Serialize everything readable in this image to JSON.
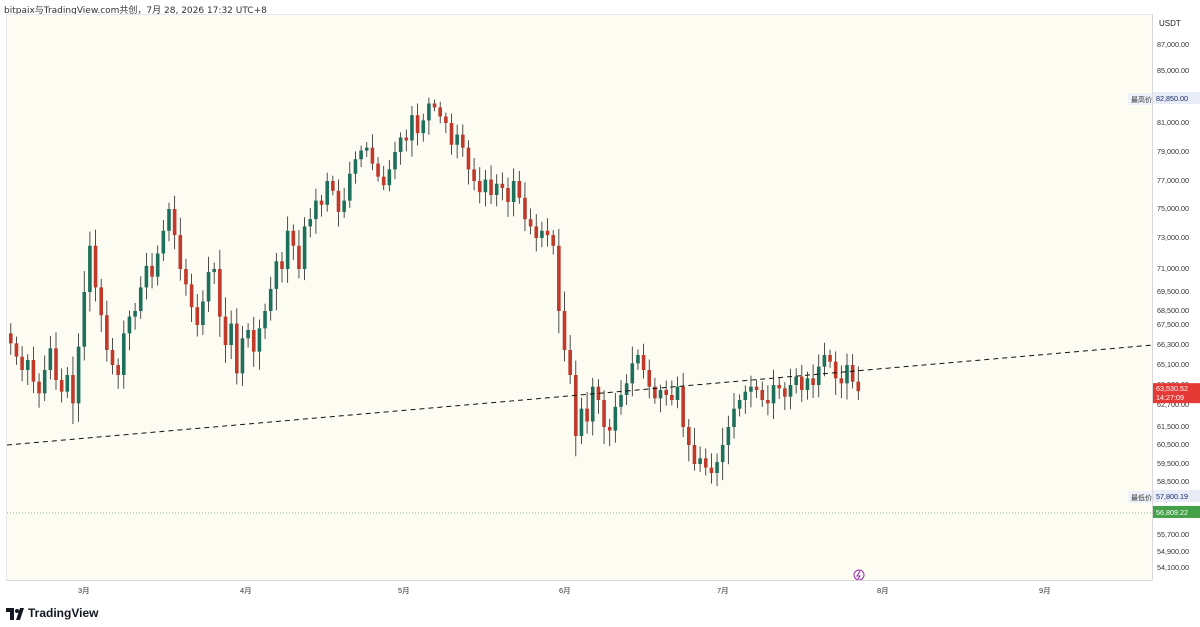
{
  "header": {
    "title": "bitpaix与TradingView.com共创，7月 28, 2026 17:32 UTC+8"
  },
  "footer": {
    "brand": "TradingView"
  },
  "price_axis": {
    "currency": "USDT",
    "ticks": [
      "87,000.00",
      "85,000.00",
      "81,000.00",
      "79,000.00",
      "77,000.00",
      "75,000.00",
      "73,000.00",
      "71,000.00",
      "69,500.00",
      "68,500.00",
      "67,500.00",
      "66,300.00",
      "65,100.00",
      "63,900.00",
      "62,700.00",
      "61,500.00",
      "60,500.00",
      "59,500.00",
      "58,500.00",
      "57,500.00",
      "56,700.00",
      "55,700.00",
      "54,900.00",
      "54,100.00"
    ],
    "high_label": "最高价",
    "high_value": "82,850.00",
    "low_label": "最低价",
    "low_value": "57,800.19",
    "last_value": "63,530.52",
    "countdown": "14:27:09",
    "dotted_value": "56,809.22"
  },
  "time_axis": {
    "labels": [
      "3月",
      "4月",
      "5月",
      "6月",
      "7月",
      "8月",
      "9月"
    ]
  },
  "colors": {
    "up": "#1e6f5c",
    "down": "#c0392b",
    "background": "#fdfcf3",
    "last_bg": "#e53935",
    "dotted_bg": "#43a047",
    "marker": "#9c27b0"
  },
  "chart_data": {
    "type": "candlestick",
    "x_months": [
      "3月",
      "4月",
      "5月",
      "6月",
      "7月",
      "8月",
      "9月"
    ],
    "y_axis_nonlinear": true,
    "approx_range": [
      54100,
      87000
    ],
    "trend_line": {
      "style": "dashed",
      "from_price": 60500,
      "to_price": 66300
    },
    "key_levels": {
      "high": 82850.0,
      "low": 57800.19,
      "last": 63530.52,
      "dotted": 56809.22
    },
    "path_notes": "Rises from ~65k in March to peak near 82.8k in early May, drops sharply in late May/June to ~58k, then recovers to ~63.5k by late July.",
    "closes": [
      66400,
      65600,
      64800,
      65400,
      64100,
      63400,
      64800,
      66100,
      64200,
      63500,
      64500,
      62800,
      66200,
      69500,
      72500,
      69800,
      68200,
      66000,
      65100,
      64500,
      67000,
      68100,
      68500,
      69800,
      71200,
      70500,
      72000,
      73500,
      75000,
      73200,
      71000,
      70000,
      68700,
      67500,
      69000,
      70800,
      71000,
      68100,
      66300,
      67600,
      64600,
      66700,
      67200,
      65900,
      67300,
      68500,
      69700,
      71500,
      71000,
      73500,
      72500,
      71000,
      73800,
      74300,
      75600,
      75300,
      77000,
      76300,
      74800,
      75600,
      77500,
      78500,
      79100,
      79300,
      78200,
      77300,
      76700,
      77800,
      79000,
      80000,
      79800,
      81600,
      80300,
      81200,
      82500,
      82200,
      81500,
      81000,
      79500,
      80200,
      79300,
      77800,
      77000,
      76200,
      77100,
      76000,
      76800,
      76500,
      75500,
      77000,
      75800,
      74300,
      73800,
      73000,
      73500,
      73200,
      72500,
      68500,
      66000,
      64500,
      61000,
      62500,
      61800,
      63800,
      63000,
      61500,
      61300,
      62600,
      63300,
      64000,
      65200,
      65700,
      64800,
      63800,
      63100,
      63600,
      63300,
      63000,
      63800,
      61500,
      60500,
      59500,
      59800,
      59300,
      59000,
      59600,
      60500,
      61500,
      62500,
      63000,
      63500,
      63800,
      63600,
      63000,
      62800,
      63900,
      63700,
      63200,
      63900,
      64400,
      63600,
      64300,
      63900,
      65000,
      65700,
      65300,
      64300,
      64000,
      65100,
      64100,
      63530
    ]
  }
}
